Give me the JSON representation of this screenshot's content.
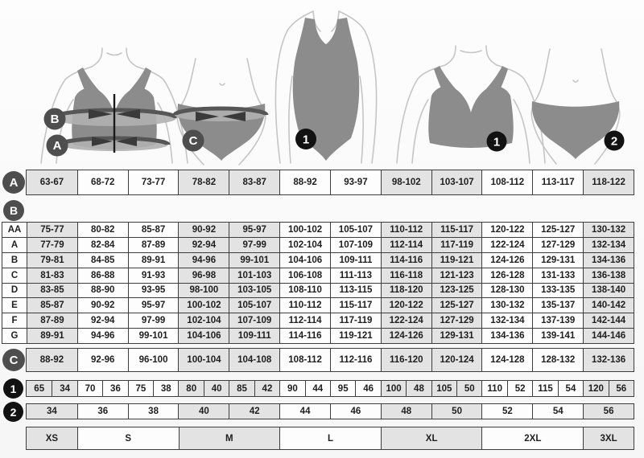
{
  "figures": {
    "bra_measure": {
      "bust_label": "B",
      "underbust_label": "A"
    },
    "brief_measure": {
      "hip_label": "C"
    },
    "swimsuit": {
      "label": "1"
    },
    "bra": {
      "label": "1"
    },
    "brief": {
      "label": "2"
    }
  },
  "row_a": {
    "label": "A",
    "cells": [
      "63-67",
      "68-72",
      "73-77",
      "78-82",
      "83-87",
      "88-92",
      "93-97",
      "98-102",
      "103-107",
      "108-112",
      "113-117",
      "118-122"
    ]
  },
  "table_b": {
    "label": "B",
    "rows": [
      {
        "cup": "AA",
        "cells": [
          "75-77",
          "80-82",
          "85-87",
          "90-92",
          "95-97",
          "100-102",
          "105-107",
          "110-112",
          "115-117",
          "120-122",
          "125-127",
          "130-132"
        ]
      },
      {
        "cup": "A",
        "cells": [
          "77-79",
          "82-84",
          "87-89",
          "92-94",
          "97-99",
          "102-104",
          "107-109",
          "112-114",
          "117-119",
          "122-124",
          "127-129",
          "132-134"
        ]
      },
      {
        "cup": "B",
        "cells": [
          "79-81",
          "84-85",
          "89-91",
          "94-96",
          "99-101",
          "104-106",
          "109-111",
          "114-116",
          "119-121",
          "124-126",
          "129-131",
          "134-136"
        ]
      },
      {
        "cup": "C",
        "cells": [
          "81-83",
          "86-88",
          "91-93",
          "96-98",
          "101-103",
          "106-108",
          "111-113",
          "116-118",
          "121-123",
          "126-128",
          "131-133",
          "136-138"
        ]
      },
      {
        "cup": "D",
        "cells": [
          "83-85",
          "88-90",
          "93-95",
          "98-100",
          "103-105",
          "108-110",
          "113-115",
          "118-120",
          "123-125",
          "128-130",
          "133-135",
          "138-140"
        ]
      },
      {
        "cup": "E",
        "cells": [
          "85-87",
          "90-92",
          "95-97",
          "100-102",
          "105-107",
          "110-112",
          "115-117",
          "120-122",
          "125-127",
          "130-132",
          "135-137",
          "140-142"
        ]
      },
      {
        "cup": "F",
        "cells": [
          "87-89",
          "92-94",
          "97-99",
          "102-104",
          "107-109",
          "112-114",
          "117-119",
          "122-124",
          "127-129",
          "132-134",
          "137-139",
          "142-144"
        ]
      },
      {
        "cup": "G",
        "cells": [
          "89-91",
          "94-96",
          "99-101",
          "104-106",
          "109-111",
          "114-116",
          "119-121",
          "124-126",
          "129-131",
          "134-136",
          "139-141",
          "144-146"
        ]
      }
    ]
  },
  "row_c": {
    "label": "C",
    "cells": [
      "88-92",
      "92-96",
      "96-100",
      "100-104",
      "104-108",
      "108-112",
      "112-116",
      "116-120",
      "120-124",
      "124-128",
      "128-132",
      "132-136"
    ]
  },
  "row_1": {
    "label": "1",
    "cells": [
      "65",
      "34",
      "70",
      "36",
      "75",
      "38",
      "80",
      "40",
      "85",
      "42",
      "90",
      "44",
      "95",
      "46",
      "100",
      "48",
      "105",
      "50",
      "110",
      "52",
      "115",
      "54",
      "120",
      "56"
    ]
  },
  "row_2": {
    "label": "2",
    "cells": [
      "34",
      "36",
      "38",
      "40",
      "42",
      "44",
      "46",
      "48",
      "50",
      "52",
      "54",
      "56"
    ]
  },
  "size_row": {
    "sizes": [
      {
        "label": "XS",
        "span": 1
      },
      {
        "label": "S",
        "span": 2
      },
      {
        "label": "M",
        "span": 2
      },
      {
        "label": "L",
        "span": 2
      },
      {
        "label": "XL",
        "span": 2
      },
      {
        "label": "2XL",
        "span": 2
      },
      {
        "label": "3XL",
        "span": 1
      }
    ]
  },
  "colors": {
    "cell_shaded": "#e3e3e3",
    "cell_plain": "#fdfdfd",
    "border": "#3d3d3d",
    "text": "#1e1e1e",
    "circle_gray": "#4e4e4e",
    "circle_black": "#121212",
    "garment": "#8c8c8c",
    "band_fill": "#b0b0b0",
    "band_dark": "#565656",
    "arrow": "#3a3a3a",
    "body_outline": "#c5c5c5"
  }
}
